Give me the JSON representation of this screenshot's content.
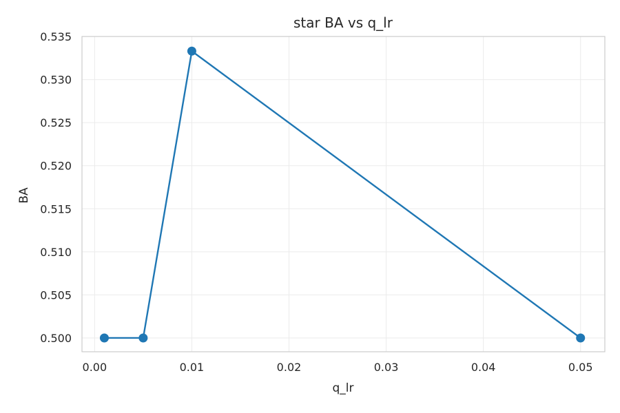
{
  "chart_data": {
    "type": "line",
    "title": "star BA vs q_lr",
    "xlabel": "q_lr",
    "ylabel": "BA",
    "xlim": [
      -0.0013,
      0.0525
    ],
    "ylim": [
      0.4984,
      0.535
    ],
    "xticks": [
      0.0,
      0.01,
      0.02,
      0.03,
      0.04,
      0.05
    ],
    "xtick_labels": [
      "0.00",
      "0.01",
      "0.02",
      "0.03",
      "0.04",
      "0.05"
    ],
    "yticks": [
      0.5,
      0.505,
      0.51,
      0.515,
      0.52,
      0.525,
      0.53,
      0.535
    ],
    "ytick_labels": [
      "0.500",
      "0.505",
      "0.510",
      "0.515",
      "0.520",
      "0.525",
      "0.530",
      "0.535"
    ],
    "grid": true,
    "series": [
      {
        "color": "#1f77b4",
        "x": [
          0.001,
          0.005,
          0.01,
          0.05
        ],
        "y": [
          0.5,
          0.5,
          0.5333,
          0.5
        ]
      }
    ]
  }
}
